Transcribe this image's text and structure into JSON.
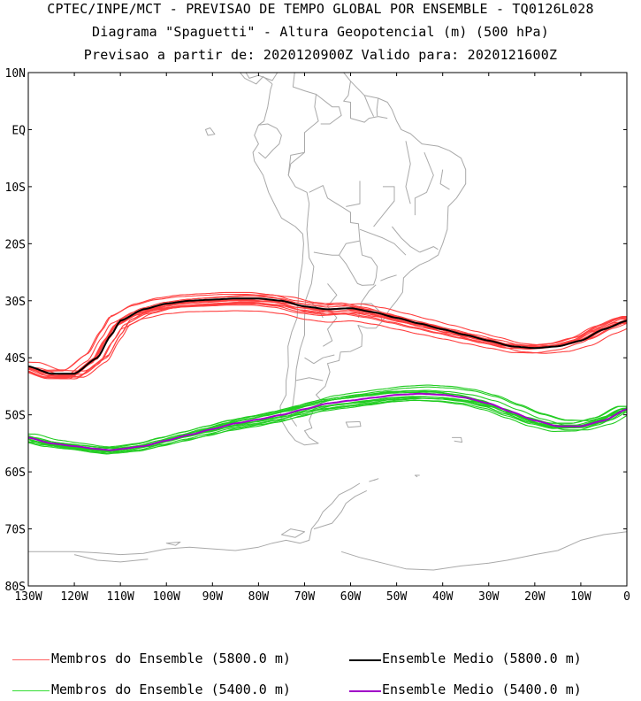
{
  "titles": {
    "line1": "CPTEC/INPE/MCT - PREVISAO DE TEMPO GLOBAL POR ENSEMBLE - TQ0126L028",
    "line2": "Diagrama \"Spaguetti\" - Altura Geopotencial (m) (500 hPa)",
    "line3": "Previsao a partir de: 2020120900Z  Valido para: 2020121600Z"
  },
  "axes": {
    "lat_labels": [
      "10N",
      "EQ",
      "10S",
      "20S",
      "30S",
      "40S",
      "50S",
      "60S",
      "70S",
      "80S"
    ],
    "lon_labels": [
      "130W",
      "120W",
      "110W",
      "100W",
      "90W",
      "80W",
      "70W",
      "60W",
      "50W",
      "40W",
      "30W",
      "20W",
      "10W",
      "0"
    ],
    "lat_range": [
      -80,
      10
    ],
    "lon_range": [
      -130,
      0
    ]
  },
  "colors": {
    "members_5800": "#ff4040",
    "mean_5800": "#000000",
    "members_5400": "#22cc22",
    "mean_5400": "#a000c8",
    "coast": "#a9a9a9"
  },
  "legend": {
    "members_5800": "Membros do Ensemble (5800.0 m)",
    "mean_5800": "Ensemble Medio (5800.0 m)",
    "members_5400": "Membros do Ensemble (5400.0 m)",
    "mean_5400": "Ensemble Medio (5400.0 m)"
  },
  "chart_data": {
    "type": "line",
    "x": [
      -130,
      -125,
      -120,
      -115,
      -112,
      -110,
      -105,
      -100,
      -95,
      -90,
      -85,
      -80,
      -75,
      -70,
      -65,
      -60,
      -55,
      -50,
      -45,
      -40,
      -35,
      -30,
      -25,
      -20,
      -15,
      -10,
      -5,
      0
    ],
    "series": [
      {
        "name": "Ensemble Medio (5800.0 m)",
        "values": [
          -41.5,
          -42.8,
          -42.8,
          -40.0,
          -36.0,
          -33.5,
          -31.5,
          -30.5,
          -30.0,
          -29.8,
          -29.6,
          -29.6,
          -30.0,
          -31.0,
          -31.5,
          -31.3,
          -32.0,
          -33.0,
          -34.0,
          -35.0,
          -36.0,
          -37.0,
          -38.0,
          -38.3,
          -38.0,
          -37.0,
          -35.0,
          -33.5
        ]
      },
      {
        "name": "Ensemble Medio (5400.0 m)",
        "values": [
          -54.0,
          -55.0,
          -55.5,
          -56.0,
          -56.2,
          -56.0,
          -55.5,
          -54.5,
          -53.5,
          -52.5,
          -51.5,
          -50.8,
          -50.0,
          -49.0,
          -48.0,
          -47.5,
          -47.0,
          -46.5,
          -46.3,
          -46.5,
          -47.0,
          -48.0,
          -49.5,
          -51.0,
          -52.0,
          -52.0,
          -51.0,
          -49.0
        ]
      }
    ]
  }
}
